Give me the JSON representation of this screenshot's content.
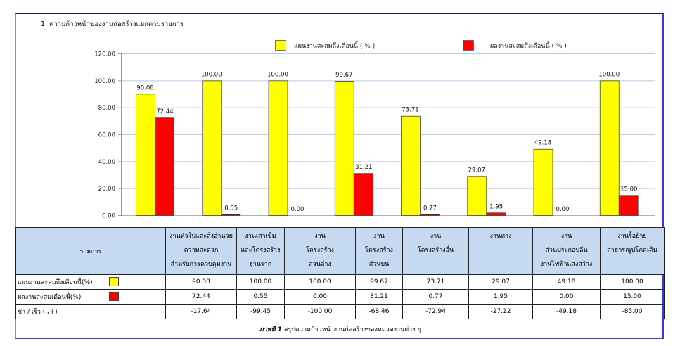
{
  "section_title": "1. ความก้าวหน้าของงานก่อสร้างแยกตามรายการ",
  "colors": {
    "plan": "#ffff00",
    "actual": "#ff0000",
    "header_bg": "#c5d9f1",
    "grid": "#b8cce4"
  },
  "chart_data": {
    "type": "bar",
    "title": "",
    "xlabel": "",
    "ylabel": "",
    "ylim": [
      0,
      120
    ],
    "yticks": [
      "0.00",
      "20.00",
      "40.00",
      "60.00",
      "80.00",
      "100.00",
      "120.00"
    ],
    "ytick_values": [
      0,
      20,
      40,
      60,
      80,
      100,
      120
    ],
    "grid": true,
    "legend_position": "top-right",
    "categories": [
      "งานทั่วไปและสิ่งอำนวยความสะดวกสำหรับการควบคุมงาน",
      "งานเสาเข็มและโครงสร้างฐานราก",
      "งานโครงสร้างส่วนล่าง",
      "งานโครงสร้างส่วนบน",
      "งานโครงสร้างอื่น",
      "งานทาง",
      "งานส่วนประกอบอื่นงานไฟฟ้าแสงสว่าง",
      "งานรื้อย้ายสาธารณูปโภคเดิม"
    ],
    "series": [
      {
        "name": "แผนงานสะสมถึงเดือนนี้ ( % )",
        "color": "#ffff00",
        "values": [
          90.08,
          100.0,
          100.0,
          99.67,
          73.71,
          29.07,
          49.18,
          100.0
        ],
        "labels": [
          "90.08",
          "100.00",
          "100.00",
          "99.67",
          "73.71",
          "29.07",
          "49.18",
          "100.00"
        ]
      },
      {
        "name": "ผลงานสะสมถึงเดือนนี้ ( % )",
        "color": "#ff0000",
        "values": [
          72.44,
          0.55,
          0.0,
          31.21,
          0.77,
          1.95,
          0.0,
          15.0
        ],
        "labels": [
          "72.44",
          "0.55",
          "0.00",
          "31.21",
          "0.77",
          "1.95",
          "0.00",
          "15.00"
        ]
      }
    ]
  },
  "table": {
    "row_header": "รายการ",
    "columns": [
      [
        "งานทั่วไปและสิ่งอำนวย",
        "ความสะดวก",
        "สำหรับการควบคุมงาน"
      ],
      [
        "งานเสาเข็ม",
        "และโครงสร้าง",
        "ฐานราก"
      ],
      [
        "งาน",
        "โครงสร้าง",
        "ส่วนล่าง"
      ],
      [
        "งาน",
        "โครงสร้าง",
        "ส่วนบน"
      ],
      [
        "งาน",
        "โครงสร้างอื่น",
        ""
      ],
      [
        "งานทาง",
        "",
        ""
      ],
      [
        "งาน",
        "ส่วนประกอบอื่น",
        "งานไฟฟ้าแสงสว่าง"
      ],
      [
        "งานรื้อย้าย",
        "สาธารณูปโภคเดิม",
        ""
      ]
    ],
    "rows": [
      {
        "label": "แผนงานสะสมถึงเดือนนี้(%)",
        "swatch": "#ffff00",
        "values": [
          "90.08",
          "100.00",
          "100.00",
          "99.67",
          "73.71",
          "29.07",
          "49.18",
          "100.00"
        ]
      },
      {
        "label": "ผลงานสะสมเดือนนี้(%)",
        "swatch": "#ff0000",
        "values": [
          "72.44",
          "0.55",
          "0.00",
          "31.21",
          "0.77",
          "1.95",
          "0.00",
          "15.00"
        ]
      },
      {
        "label": "ช้า / เร็ว  (-/+)",
        "swatch": null,
        "values": [
          "-17.64",
          "-99.45",
          "-100.00",
          "-68.46",
          "-72.94",
          "-27.12",
          "-49.18",
          "-85.00"
        ]
      }
    ],
    "caption_bold": "ภาพที่ 1",
    "caption_text": " สรุปความก้าวหน้างานก่อสร้างของหมวดงานต่าง ๆ"
  }
}
